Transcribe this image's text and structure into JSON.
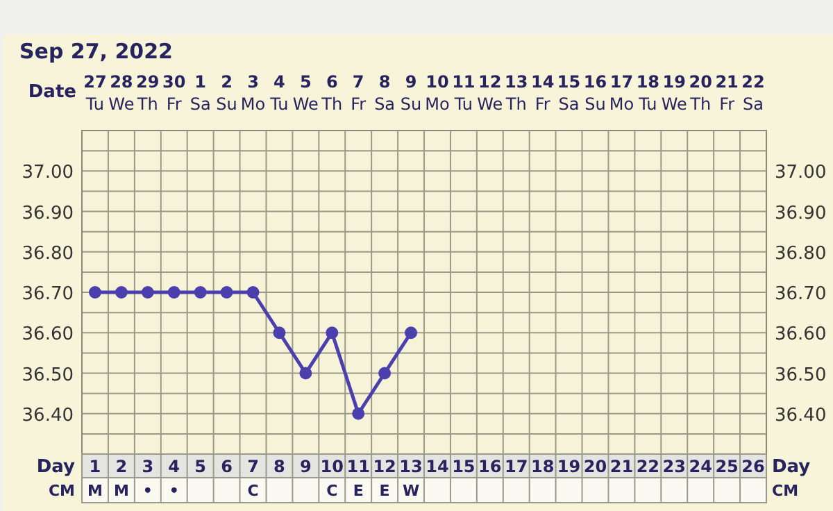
{
  "chart_data": {
    "type": "line",
    "title": "Sep 27, 2022",
    "xlabel": "Day",
    "x2label": "Date",
    "categories": [
      "1\nM",
      "2\nM",
      "3\n•",
      "4\n•",
      "5",
      "6",
      "7\nC",
      "8",
      "9",
      "10\nC",
      "11\nE",
      "12\nE",
      "13\nW",
      "14",
      "15",
      "16",
      "17",
      "18",
      "19",
      "20",
      "21",
      "22",
      "23",
      "24",
      "25",
      "26"
    ],
    "series": [
      {
        "color": "#4b3fae",
        "values": [
          36.7,
          36.7,
          36.7,
          36.7,
          36.7,
          36.7,
          36.7,
          36.6,
          36.5,
          36.6,
          36.4,
          36.5,
          36.6,
          null,
          null,
          null,
          null,
          null,
          null,
          null,
          null,
          null,
          null,
          null,
          null,
          null
        ]
      }
    ],
    "ylim": [
      36.3,
      37.1
    ],
    "yticks": [
      {
        "value": 36.35,
        "label": null
      },
      {
        "value": 36.4,
        "label": "36.40"
      },
      {
        "value": 36.45,
        "label": null
      },
      {
        "value": 36.5,
        "label": "36.50"
      },
      {
        "value": 36.55,
        "label": null
      },
      {
        "value": 36.6,
        "label": "36.60"
      },
      {
        "value": 36.65,
        "label": null
      },
      {
        "value": 36.7,
        "label": "36.70"
      },
      {
        "value": 36.75,
        "label": null
      },
      {
        "value": 36.8,
        "label": "36.80"
      },
      {
        "value": 36.85,
        "label": null
      },
      {
        "value": 36.9,
        "label": "36.90"
      },
      {
        "value": 36.95,
        "label": null
      },
      {
        "value": 37.0,
        "label": "37.00"
      },
      {
        "value": 37.05,
        "label": null
      }
    ],
    "y2lim": [
      36.3,
      37.1
    ],
    "y2ticks": [
      {
        "value": 36.4,
        "label": "36.40"
      },
      {
        "value": 36.5,
        "label": "36.50"
      },
      {
        "value": 36.6,
        "label": "36.60"
      },
      {
        "value": 36.7,
        "label": "36.70"
      },
      {
        "value": 36.8,
        "label": "36.80"
      },
      {
        "value": 36.9,
        "label": "36.90"
      },
      {
        "value": 37.0,
        "label": "37.00"
      }
    ],
    "grid": true,
    "marker": "circle",
    "line_style": "solid",
    "annotations": [
      "CM",
      "27\nTu",
      "28\nWe",
      "29\nTh",
      "30\nFr",
      "1\nSa",
      "2\nSu",
      "3\nMo",
      "4\nTu",
      "5\nWe",
      "6\nTh",
      "7\nFr",
      "8\nSa",
      "9\nSu",
      "10\nMo",
      "11\nTu",
      "12\nWe",
      "13\nTh",
      "14\nFr",
      "15\nSa",
      "16\nSu",
      "17\nMo",
      "18\nTu",
      "19\nWe",
      "20\nTh",
      "21\nFr",
      "22\nSa"
    ]
  }
}
